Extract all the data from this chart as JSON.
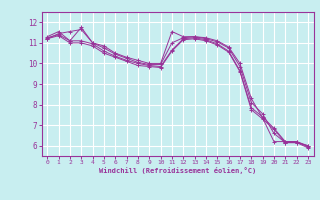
{
  "title": "",
  "xlabel": "Windchill (Refroidissement éolien,°C)",
  "ylabel": "",
  "background_color": "#c8eef0",
  "grid_color": "#ffffff",
  "line_color": "#993399",
  "xlim": [
    -0.5,
    23.5
  ],
  "ylim": [
    5.5,
    12.5
  ],
  "xticks": [
    0,
    1,
    2,
    3,
    4,
    5,
    6,
    7,
    8,
    9,
    10,
    11,
    12,
    13,
    14,
    15,
    16,
    17,
    18,
    19,
    20,
    21,
    22,
    23
  ],
  "yticks": [
    6,
    7,
    8,
    9,
    10,
    11,
    12
  ],
  "series": [
    [
      11.3,
      11.55,
      11.1,
      11.75,
      11.0,
      10.85,
      10.5,
      10.3,
      10.15,
      10.0,
      10.0,
      11.55,
      11.3,
      11.3,
      11.25,
      11.1,
      10.8,
      10.0,
      8.3,
      7.35,
      6.2,
      6.2,
      6.2,
      6.0
    ],
    [
      11.2,
      11.45,
      11.55,
      11.65,
      11.0,
      10.75,
      10.45,
      10.25,
      10.05,
      9.95,
      9.95,
      11.0,
      11.25,
      11.3,
      11.2,
      11.05,
      10.75,
      9.85,
      8.1,
      7.55,
      6.6,
      6.15,
      6.15,
      6.0
    ],
    [
      11.25,
      11.4,
      11.1,
      11.1,
      10.95,
      10.6,
      10.35,
      10.15,
      10.0,
      9.9,
      9.85,
      10.65,
      11.2,
      11.25,
      11.15,
      10.95,
      10.6,
      9.65,
      7.85,
      7.4,
      6.85,
      6.2,
      6.2,
      5.95
    ],
    [
      11.2,
      11.35,
      11.0,
      11.0,
      10.85,
      10.5,
      10.3,
      10.1,
      9.9,
      9.85,
      9.8,
      10.6,
      11.15,
      11.2,
      11.1,
      10.9,
      10.55,
      9.6,
      7.75,
      7.3,
      6.8,
      6.15,
      6.15,
      5.9
    ]
  ]
}
